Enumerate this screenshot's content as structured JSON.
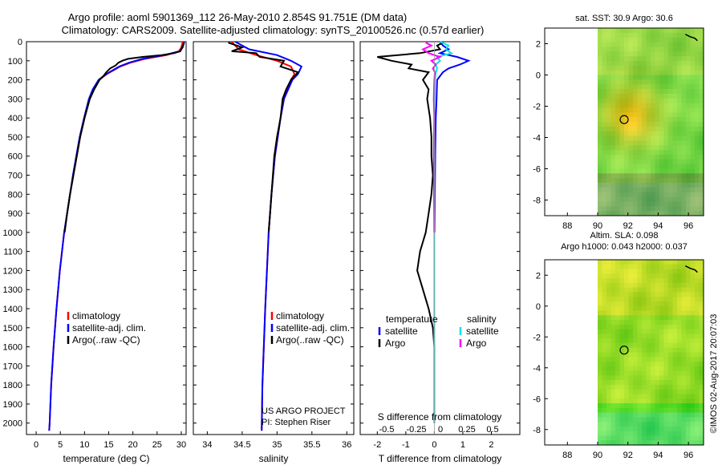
{
  "title": {
    "line1": "Argo profile: aoml 5901369_112 26-May-2010 2.854S 91.751E (DM data)",
    "line2": "Climatology: CARS2009. Satellite-adjusted climatology: synTS_20100526.nc (0.57d earlier)"
  },
  "colors": {
    "climatology": "#ff0000",
    "satellite": "#0000ff",
    "argo": "#000000",
    "sat_salinity": "#00e5ee",
    "argo_salinity": "#ff00ff"
  },
  "depth_ticks": [
    "0",
    "100",
    "200",
    "300",
    "400",
    "500",
    "600",
    "700",
    "800",
    "900",
    "1000",
    "1100",
    "1200",
    "1300",
    "1400",
    "1500",
    "1600",
    "1700",
    "1800",
    "1900",
    "2000"
  ],
  "chart_data": [
    {
      "type": "line",
      "panel": "temperature",
      "xlabel": "temperature (deg C)",
      "ylabel": "depth",
      "xlim": [
        -2,
        31
      ],
      "ylim": [
        2060,
        0
      ],
      "xticks": [
        "0",
        "5",
        "10",
        "15",
        "20",
        "25",
        "30"
      ],
      "xtick_values": [
        0,
        5,
        10,
        15,
        20,
        25,
        30
      ],
      "legend": [
        "climatology",
        "satellite-adj. clim.",
        "Argo(..raw -QC)"
      ],
      "series": [
        {
          "name": "climatology",
          "color": "#ff0000",
          "depth": [
            0,
            30,
            50,
            70,
            90,
            110,
            130,
            150,
            170,
            200,
            250,
            300,
            400,
            500,
            600,
            700,
            800,
            900,
            1000,
            1200,
            1400,
            1600,
            1800,
            2000,
            2040
          ],
          "values": [
            30.3,
            30.0,
            29.5,
            27.0,
            22.5,
            19.5,
            17.4,
            16.0,
            14.6,
            13.0,
            11.8,
            11.0,
            10.0,
            9.1,
            8.4,
            7.7,
            7.0,
            6.4,
            5.8,
            4.9,
            4.2,
            3.6,
            3.1,
            2.8,
            2.7
          ]
        },
        {
          "name": "satellite-adj. clim.",
          "color": "#0000ff",
          "depth": [
            0,
            30,
            50,
            70,
            90,
            110,
            130,
            150,
            170,
            200,
            250,
            300,
            400,
            500,
            600,
            700,
            800,
            900,
            1000,
            1200,
            1400,
            1600,
            1800,
            2000,
            2040
          ],
          "values": [
            30.6,
            30.3,
            29.7,
            26.5,
            22.0,
            19.2,
            17.2,
            15.8,
            14.5,
            12.9,
            11.7,
            10.9,
            9.9,
            9.0,
            8.3,
            7.6,
            7.0,
            6.4,
            5.8,
            4.9,
            4.2,
            3.6,
            3.1,
            2.8,
            2.7
          ]
        },
        {
          "name": "Argo(..raw -QC)",
          "color": "#000000",
          "depth": [
            5,
            30,
            50,
            60,
            70,
            80,
            90,
            100,
            110,
            125,
            140,
            160,
            180,
            200,
            250,
            300,
            400,
            500,
            600,
            700,
            800,
            900,
            1000
          ],
          "values": [
            30.6,
            30.2,
            29.8,
            28.5,
            26.0,
            22.0,
            19.0,
            17.8,
            17.0,
            16.4,
            15.3,
            14.5,
            13.9,
            13.1,
            12.0,
            11.1,
            10.0,
            9.1,
            8.4,
            7.7,
            7.0,
            6.4,
            5.9
          ]
        }
      ]
    },
    {
      "type": "line",
      "panel": "salinity",
      "xlabel": "salinity",
      "ylabel": "depth",
      "xlim": [
        33.8,
        36.1
      ],
      "ylim": [
        2060,
        0
      ],
      "xticks": [
        "34",
        "34.5",
        "35",
        "35.5",
        "36"
      ],
      "xtick_values": [
        34,
        34.5,
        35,
        35.5,
        36
      ],
      "legend": [
        "climatology",
        "satellite-adj. clim.",
        "Argo(..raw -QC)"
      ],
      "annotation": [
        "US ARGO PROJECT",
        "PI: Stephen Riser"
      ],
      "series": [
        {
          "name": "climatology",
          "color": "#ff0000",
          "depth": [
            0,
            40,
            70,
            100,
            130,
            170,
            200,
            300,
            400,
            600,
            800,
            1000,
            1400,
            1800,
            2040
          ],
          "values": [
            34.35,
            34.45,
            34.7,
            35.0,
            35.2,
            35.25,
            35.2,
            35.1,
            35.05,
            34.97,
            34.92,
            34.88,
            34.83,
            34.79,
            34.78
          ]
        },
        {
          "name": "satellite-adj. clim.",
          "color": "#0000ff",
          "depth": [
            0,
            40,
            70,
            100,
            130,
            170,
            200,
            300,
            400,
            600,
            800,
            1000,
            1400,
            1800,
            2040
          ],
          "values": [
            34.4,
            34.6,
            35.0,
            35.2,
            35.35,
            35.3,
            35.22,
            35.1,
            35.05,
            34.97,
            34.92,
            34.88,
            34.83,
            34.79,
            34.78
          ]
        },
        {
          "name": "Argo(..raw -QC)",
          "color": "#000000",
          "depth": [
            5,
            30,
            50,
            60,
            80,
            100,
            130,
            160,
            200,
            250,
            300,
            400,
            500,
            600,
            800,
            900,
            1000
          ],
          "values": [
            34.3,
            34.5,
            34.35,
            34.7,
            34.75,
            35.1,
            35.05,
            35.3,
            35.2,
            35.13,
            35.08,
            35.05,
            35.0,
            34.96,
            34.92,
            34.9,
            34.88
          ]
        }
      ]
    },
    {
      "type": "line",
      "panel": "differences",
      "xlabel": "T difference from climatology",
      "xlabel_top": "S difference from climatology",
      "xlim": [
        -2.6,
        3.0
      ],
      "ylim": [
        2060,
        0
      ],
      "xticks": [
        "-2",
        "-1",
        "0",
        "1",
        "2"
      ],
      "xtick_values": [
        -2,
        -1,
        0,
        1,
        2
      ],
      "sticks": [
        "-0.5",
        "-0.25",
        "0",
        "0.25",
        "0.5"
      ],
      "stick_values": [
        -0.5,
        -0.25,
        0,
        0.25,
        0.5
      ],
      "legend": {
        "temperature": "temperature",
        "salinity": "salinity",
        "satellite": "satellite",
        "argo": "Argo"
      },
      "series": [
        {
          "name": "temperature satellite",
          "color": "#0000ff",
          "depth": [
            0,
            20,
            40,
            60,
            80,
            100,
            120,
            140,
            160,
            200,
            300,
            400,
            600,
            800,
            1000
          ],
          "values": [
            0.2,
            0.3,
            0.5,
            0.2,
            0.8,
            1.2,
            0.9,
            0.5,
            0.3,
            0.1,
            0.08,
            0.05,
            0.03,
            0.02,
            0.01
          ]
        },
        {
          "name": "temperature Argo",
          "color": "#000000",
          "depth": [
            5,
            20,
            40,
            60,
            80,
            100,
            120,
            140,
            160,
            200,
            250,
            300,
            400,
            500,
            600,
            700,
            800,
            900,
            1000,
            1100,
            1200,
            1300,
            1400,
            1500,
            1600,
            2000
          ],
          "values": [
            0.3,
            0.1,
            0.2,
            -0.5,
            -2.0,
            -1.5,
            -0.8,
            -0.9,
            -0.2,
            -0.4,
            -0.2,
            -0.25,
            -0.15,
            -0.1,
            -0.1,
            -0.05,
            -0.1,
            -0.2,
            -0.3,
            -0.5,
            -0.6,
            -0.4,
            -0.2,
            -0.05,
            0.0,
            0.0
          ]
        },
        {
          "name": "salinity satellite",
          "color": "#00e5ee",
          "depth": [
            0,
            20,
            40,
            60,
            80,
            100,
            120,
            140,
            160,
            200,
            300,
            400,
            600,
            800,
            1000,
            1200,
            1400,
            1600,
            1800,
            2000
          ],
          "values": [
            0.2,
            0.5,
            0.4,
            0.6,
            0.1,
            0.2,
            0.05,
            0.1,
            0.05,
            0.02,
            0.01,
            0.0,
            0.0,
            0.0,
            0.0,
            0.0,
            0.0,
            0.0,
            0.0,
            0.0
          ]
        },
        {
          "name": "salinity Argo",
          "color": "#ff00ff",
          "depth": [
            5,
            20,
            40,
            60,
            80,
            100,
            120,
            140,
            160,
            200,
            300,
            400,
            600,
            800,
            1000
          ],
          "values": [
            -0.3,
            -0.1,
            -0.4,
            -0.2,
            0.2,
            -0.1,
            0.05,
            -0.05,
            0.02,
            0.0,
            -0.02,
            0.0,
            -0.02,
            -0.01,
            0.0
          ]
        }
      ]
    },
    {
      "type": "heatmap",
      "panel": "map_sst",
      "title": "sat. SST: 30.9 Argo: 30.6",
      "xlim": [
        86.5,
        97
      ],
      "ylim": [
        -9,
        3
      ],
      "xticks": [
        "88",
        "90",
        "92",
        "94",
        "96"
      ],
      "xtick_values": [
        88,
        90,
        92,
        94,
        96
      ],
      "yticks": [
        "2",
        "0",
        "-2",
        "-4",
        "-6",
        "-8"
      ],
      "ytick_values": [
        2,
        0,
        -2,
        -4,
        -6,
        -8
      ],
      "float_position": {
        "lon": 91.751,
        "lat": -2.854
      }
    },
    {
      "type": "heatmap",
      "panel": "map_sla",
      "title_line1": "Altim. SLA: 0.098",
      "title_line2": "Argo h1000: 0.043 h2000: 0.037",
      "xlim": [
        86.5,
        97
      ],
      "ylim": [
        -9,
        3
      ],
      "xticks": [
        "88",
        "90",
        "92",
        "94",
        "96"
      ],
      "xtick_values": [
        88,
        90,
        92,
        94,
        96
      ],
      "yticks": [
        "2",
        "0",
        "-2",
        "-4",
        "-6",
        "-8"
      ],
      "ytick_values": [
        2,
        0,
        -2,
        -4,
        -6,
        -8
      ],
      "float_position": {
        "lon": 91.751,
        "lat": -2.854
      }
    }
  ],
  "footer": "©IMOS 02-Aug-2017 20:07:03"
}
